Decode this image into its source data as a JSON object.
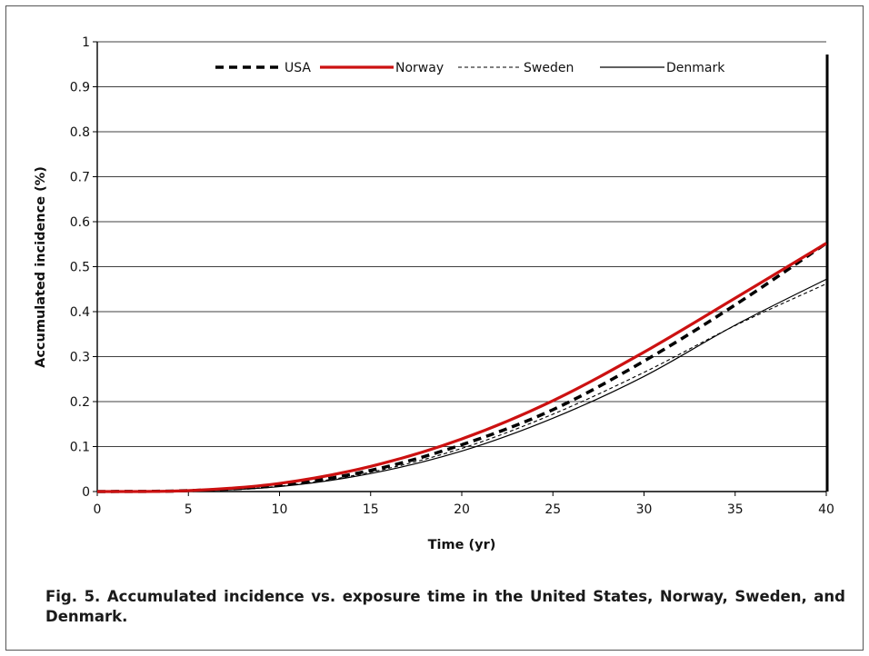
{
  "chart_data": {
    "type": "line",
    "xlabel": "Time (yr)",
    "ylabel": "Accumulated incidence (%)",
    "xlim": [
      0,
      40
    ],
    "ylim": [
      0,
      1
    ],
    "x_ticks": [
      0,
      5,
      10,
      15,
      20,
      25,
      30,
      35,
      40
    ],
    "y_ticks": [
      0,
      0.1,
      0.2,
      0.3,
      0.4,
      0.5,
      0.6,
      0.7,
      0.8,
      0.9,
      1
    ],
    "y_tick_labels": [
      "0",
      "0.1",
      "0.2",
      "0.3",
      "0.4",
      "0.5",
      "0.6",
      "0.7",
      "0.8",
      "0.9",
      "1"
    ],
    "grid": "horizontal",
    "legend_position": "top-center",
    "x": [
      0,
      5,
      10,
      15,
      20,
      25,
      30,
      35,
      40
    ],
    "series": [
      {
        "name": "USA",
        "color": "#000000",
        "style": "bold-dashed",
        "values": [
          0,
          0.002,
          0.014,
          0.047,
          0.104,
          0.182,
          0.29,
          0.415,
          0.552
        ]
      },
      {
        "name": "Norway",
        "color": "#cc1111",
        "style": "bold-solid",
        "values": [
          0,
          0.002,
          0.018,
          0.056,
          0.117,
          0.202,
          0.31,
          0.43,
          0.552
        ]
      },
      {
        "name": "Sweden",
        "color": "#000000",
        "style": "thin-dashed",
        "values": [
          0,
          0.001,
          0.012,
          0.043,
          0.096,
          0.172,
          0.265,
          0.369,
          0.462
        ]
      },
      {
        "name": "Denmark",
        "color": "#000000",
        "style": "thin-solid",
        "values": [
          0,
          0.001,
          0.011,
          0.04,
          0.09,
          0.163,
          0.256,
          0.37,
          0.472
        ]
      }
    ]
  },
  "caption": "Fig. 5. Accumulated incidence vs. exposure time in the United States, Norway, Sweden, and Denmark."
}
